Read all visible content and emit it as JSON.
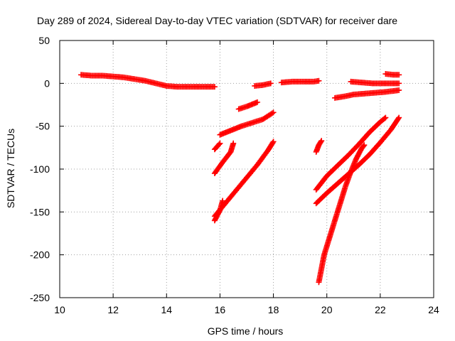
{
  "chart_data": {
    "type": "scatter",
    "title": "Day 289 of 2024, Sidereal Day-to-day VTEC variation (SDTVAR) for receiver dare",
    "xlabel": "GPS time / hours",
    "ylabel": "SDTVAR / TECUs",
    "xlim": [
      10,
      24
    ],
    "ylim": [
      -250,
      50
    ],
    "xticks": [
      10,
      12,
      14,
      16,
      18,
      20,
      22,
      24
    ],
    "yticks": [
      50,
      0,
      -50,
      -100,
      -150,
      -200,
      -250
    ],
    "grid": true,
    "marker": "+",
    "color": "#ff0000",
    "series": [
      {
        "points": [
          [
            10.8,
            10
          ],
          [
            11.2,
            9
          ],
          [
            11.6,
            9
          ],
          [
            12.0,
            8
          ],
          [
            12.4,
            7
          ],
          [
            12.8,
            5
          ],
          [
            13.2,
            3
          ],
          [
            13.6,
            0
          ],
          [
            14.0,
            -3
          ],
          [
            14.4,
            -4
          ],
          [
            14.8,
            -4
          ],
          [
            15.2,
            -4
          ],
          [
            15.6,
            -4
          ],
          [
            15.8,
            -4
          ]
        ]
      },
      {
        "points": [
          [
            15.8,
            -77
          ],
          [
            16.0,
            -70
          ]
        ]
      },
      {
        "points": [
          [
            15.8,
            -105
          ],
          [
            16.1,
            -92
          ],
          [
            16.4,
            -80
          ],
          [
            16.5,
            -70
          ]
        ]
      },
      {
        "points": [
          [
            15.8,
            -160
          ],
          [
            16.0,
            -148
          ],
          [
            16.1,
            -137
          ]
        ]
      },
      {
        "points": [
          [
            16.0,
            -60
          ],
          [
            16.4,
            -55
          ],
          [
            16.8,
            -50
          ],
          [
            17.2,
            -46
          ],
          [
            17.6,
            -42
          ],
          [
            18.0,
            -34
          ]
        ]
      },
      {
        "points": [
          [
            15.8,
            -155
          ],
          [
            16.2,
            -140
          ],
          [
            16.6,
            -125
          ],
          [
            17.0,
            -110
          ],
          [
            17.4,
            -95
          ],
          [
            17.8,
            -78
          ],
          [
            18.0,
            -68
          ]
        ]
      },
      {
        "points": [
          [
            16.7,
            -30
          ],
          [
            17.0,
            -27
          ],
          [
            17.4,
            -22
          ]
        ]
      },
      {
        "points": [
          [
            17.3,
            -3
          ],
          [
            17.6,
            -2
          ],
          [
            17.9,
            0
          ]
        ]
      },
      {
        "points": [
          [
            18.3,
            1
          ],
          [
            18.7,
            2
          ],
          [
            19.1,
            2
          ],
          [
            19.5,
            2
          ],
          [
            19.7,
            3
          ]
        ]
      },
      {
        "points": [
          [
            19.6,
            -80
          ],
          [
            19.7,
            -72
          ],
          [
            19.8,
            -67
          ]
        ]
      },
      {
        "points": [
          [
            19.6,
            -124
          ],
          [
            20.0,
            -108
          ],
          [
            20.4,
            -96
          ],
          [
            20.8,
            -84
          ],
          [
            21.2,
            -71
          ],
          [
            21.6,
            -57
          ],
          [
            22.0,
            -45
          ],
          [
            22.2,
            -40
          ]
        ]
      },
      {
        "points": [
          [
            19.6,
            -140
          ],
          [
            20.0,
            -128
          ],
          [
            20.4,
            -117
          ],
          [
            20.8,
            -106
          ],
          [
            21.2,
            -95
          ],
          [
            21.6,
            -83
          ],
          [
            22.0,
            -69
          ],
          [
            22.4,
            -54
          ],
          [
            22.7,
            -40
          ]
        ]
      },
      {
        "points": [
          [
            19.7,
            -232
          ],
          [
            19.9,
            -200
          ],
          [
            20.1,
            -180
          ],
          [
            20.3,
            -160
          ],
          [
            20.5,
            -140
          ],
          [
            20.7,
            -120
          ],
          [
            20.9,
            -103
          ],
          [
            21.1,
            -88
          ],
          [
            21.3,
            -76
          ],
          [
            21.4,
            -72
          ]
        ]
      },
      {
        "points": [
          [
            20.3,
            -17
          ],
          [
            20.7,
            -15
          ],
          [
            21.0,
            -13
          ],
          [
            21.4,
            -12
          ],
          [
            21.8,
            -11
          ],
          [
            22.2,
            -10
          ],
          [
            22.7,
            -8
          ]
        ]
      },
      {
        "points": [
          [
            20.9,
            2
          ],
          [
            21.3,
            1
          ],
          [
            21.7,
            0
          ],
          [
            22.1,
            0
          ],
          [
            22.5,
            0
          ],
          [
            22.7,
            0
          ]
        ]
      },
      {
        "points": [
          [
            22.2,
            11
          ],
          [
            22.5,
            10
          ],
          [
            22.7,
            10
          ]
        ]
      }
    ]
  }
}
